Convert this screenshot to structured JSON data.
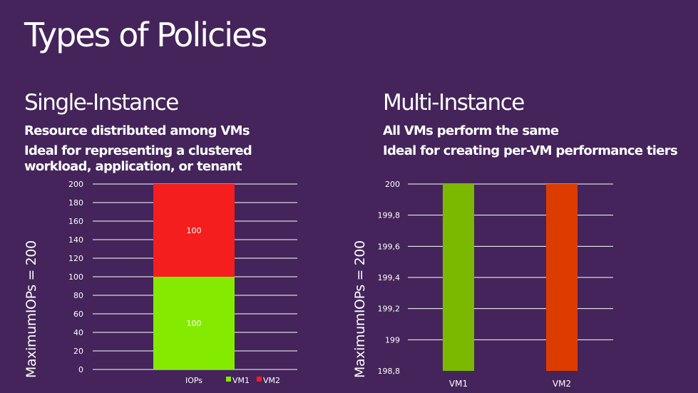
{
  "slide": {
    "title": "Types of Policies",
    "left": {
      "heading": "Single-Instance",
      "line1": "Resource distributed among VMs",
      "line2": "Ideal for representing a clustered workload, application, or tenant",
      "axis_label": "MaximumIOPs = 200"
    },
    "right": {
      "heading": "Multi-Instance",
      "line1": "All VMs perform the same",
      "line2": "Ideal for creating per-VM performance tiers",
      "axis_label": "MaximumIOPs = 200"
    }
  },
  "colors": {
    "background": "#44245a",
    "vm1_left": "#84ea00",
    "vm2_left": "#f41e1e",
    "vm1_right": "#7bb800",
    "vm2_right": "#dc3c00",
    "gridline": "#ffffff"
  },
  "chart_data": [
    {
      "type": "bar",
      "stacked": true,
      "categories": [
        "IOPs"
      ],
      "series": [
        {
          "name": "VM1",
          "values": [
            100
          ],
          "labels": [
            "100"
          ]
        },
        {
          "name": "VM2",
          "values": [
            100
          ],
          "labels": [
            "100"
          ]
        }
      ],
      "ylim": [
        0,
        200
      ],
      "yticks": [
        0,
        20,
        40,
        60,
        80,
        100,
        120,
        140,
        160,
        180,
        200
      ],
      "ytick_labels": [
        "0",
        "20",
        "40",
        "60",
        "80",
        "100",
        "120",
        "140",
        "160",
        "180",
        "200"
      ],
      "ylabel": "MaximumIOPs = 200",
      "legend": "bottom"
    },
    {
      "type": "bar",
      "categories": [
        "VM1",
        "VM2"
      ],
      "values": [
        200,
        200
      ],
      "ylim": [
        198.8,
        200
      ],
      "yticks": [
        198.8,
        199,
        199.2,
        199.4,
        199.6,
        199.8,
        200
      ],
      "ytick_labels": [
        "198,8",
        "199",
        "199,2",
        "199,4",
        "199,6",
        "199,8",
        "200"
      ],
      "ylabel": "MaximumIOPs = 200"
    }
  ]
}
